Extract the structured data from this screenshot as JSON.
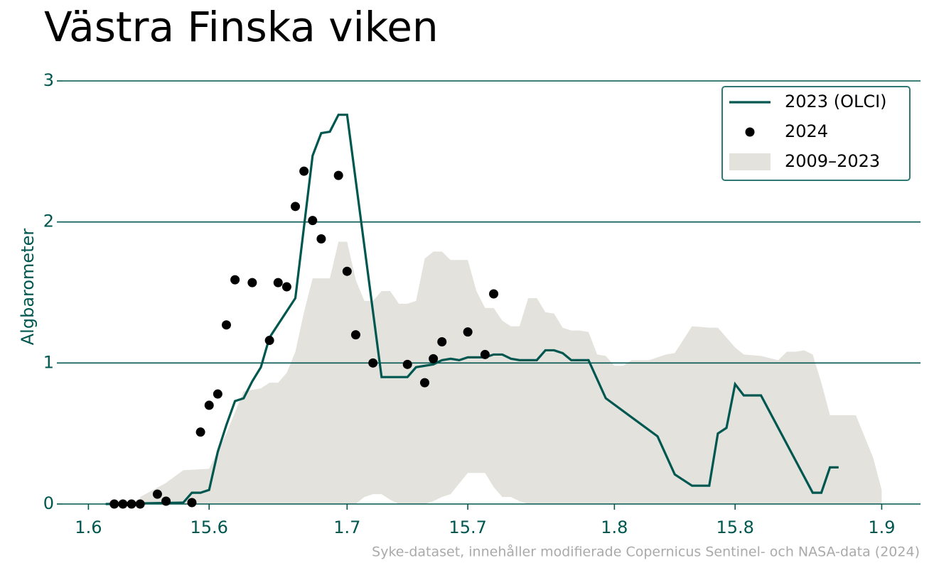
{
  "chart_data": {
    "type": "line",
    "title": "Västra Finska viken",
    "ylabel": "Algbarometer",
    "source": "Syke-dataset, innehåller modifierade Copernicus Sentinel- och NASA-data (2024)",
    "xlim": [
      150,
      249.5
    ],
    "ylim": [
      0,
      3
    ],
    "xticks": [
      {
        "value": 153,
        "label": "1.6"
      },
      {
        "value": 167,
        "label": "15.6"
      },
      {
        "value": 183,
        "label": "1.7"
      },
      {
        "value": 197,
        "label": "15.7"
      },
      {
        "value": 214,
        "label": "1.8"
      },
      {
        "value": 228,
        "label": "15.8"
      },
      {
        "value": 245,
        "label": "1.9"
      }
    ],
    "yticks": [
      0,
      1,
      2,
      3
    ],
    "grid": true,
    "legend": "upper right",
    "band": {
      "name": "2009–2023",
      "color": "#e3e2dd",
      "x": [
        159,
        162,
        164,
        167,
        169,
        171,
        173,
        174,
        175,
        176,
        177,
        178,
        179,
        181,
        182,
        183,
        184,
        185,
        186,
        187,
        188,
        189,
        190,
        191,
        192,
        193,
        194,
        195,
        197,
        198,
        199,
        200,
        201,
        202,
        203,
        204,
        205,
        206,
        207,
        208,
        209,
        210,
        211,
        212,
        213,
        214,
        215,
        216,
        218,
        220,
        221,
        223,
        225,
        226,
        228,
        229,
        231,
        233,
        234,
        235,
        236,
        237,
        238,
        239,
        242,
        244,
        245
      ],
      "upper": [
        0.05,
        0.15,
        0.24,
        0.25,
        0.5,
        0.8,
        0.82,
        0.86,
        0.86,
        0.93,
        1.08,
        1.36,
        1.6,
        1.6,
        1.86,
        1.86,
        1.59,
        1.44,
        1.44,
        1.51,
        1.51,
        1.42,
        1.42,
        1.44,
        1.74,
        1.79,
        1.79,
        1.73,
        1.73,
        1.51,
        1.39,
        1.39,
        1.3,
        1.26,
        1.26,
        1.46,
        1.46,
        1.36,
        1.35,
        1.25,
        1.23,
        1.23,
        1.22,
        1.06,
        1.05,
        0.98,
        0.98,
        1.02,
        1.02,
        1.06,
        1.07,
        1.26,
        1.25,
        1.25,
        1.11,
        1.06,
        1.05,
        1.02,
        1.08,
        1.08,
        1.09,
        1.06,
        0.86,
        0.63,
        0.63,
        0.33,
        0.1
      ],
      "lower": [
        0,
        0,
        0,
        0,
        0,
        0,
        0,
        0,
        0,
        0,
        0,
        0,
        0,
        0,
        0,
        0,
        0,
        0.05,
        0.07,
        0.07,
        0.03,
        0,
        0,
        0,
        0,
        0.02,
        0.05,
        0.07,
        0.22,
        0.22,
        0.22,
        0.12,
        0.05,
        0.05,
        0.02,
        0,
        0,
        0,
        0,
        0,
        0,
        0,
        0,
        0,
        0,
        0,
        0,
        0,
        0,
        0,
        0,
        0,
        0,
        0,
        0,
        0,
        0,
        0,
        0,
        0,
        0,
        0,
        0,
        0,
        0,
        0,
        0
      ]
    },
    "series": [
      {
        "name": "2023 (OLCI)",
        "color": "#00574f",
        "x": [
          155,
          164,
          165,
          166,
          167,
          168,
          169,
          170,
          171,
          172,
          173,
          174,
          177,
          179,
          180,
          181,
          182,
          183,
          187,
          190,
          191,
          193,
          194,
          195,
          196,
          197,
          199,
          200,
          201,
          202,
          203,
          205,
          206,
          207,
          208,
          209,
          211,
          213,
          219,
          221,
          223,
          225,
          226,
          227,
          228,
          229,
          231,
          237,
          238,
          239,
          240
        ],
        "values": [
          0,
          0.01,
          0.08,
          0.08,
          0.1,
          0.37,
          0.56,
          0.73,
          0.75,
          0.87,
          0.97,
          1.18,
          1.46,
          2.47,
          2.63,
          2.64,
          2.76,
          2.76,
          0.9,
          0.9,
          0.97,
          0.99,
          1.02,
          1.03,
          1.02,
          1.04,
          1.04,
          1.06,
          1.06,
          1.03,
          1.02,
          1.02,
          1.09,
          1.09,
          1.07,
          1.02,
          1.02,
          0.75,
          0.48,
          0.21,
          0.13,
          0.13,
          0.5,
          0.54,
          0.85,
          0.77,
          0.77,
          0.08,
          0.08,
          0.26,
          0.26
        ]
      },
      {
        "name": "2024",
        "type": "scatter",
        "color": "#000000",
        "x": [
          156,
          157,
          158,
          159,
          161,
          162,
          165,
          166,
          167,
          168,
          169,
          170,
          172,
          174,
          175,
          176,
          177,
          178,
          179,
          180,
          182,
          183,
          184,
          186,
          190,
          192,
          193,
          194,
          197,
          199,
          200
        ],
        "values": [
          0,
          0,
          0,
          0,
          0.07,
          0.02,
          0.01,
          0.51,
          0.7,
          0.78,
          1.27,
          1.59,
          1.57,
          1.16,
          1.57,
          1.54,
          2.11,
          2.36,
          2.01,
          1.88,
          2.33,
          1.65,
          1.2,
          1.0,
          0.99,
          0.86,
          1.03,
          1.15,
          1.22,
          1.06,
          1.49
        ]
      }
    ]
  }
}
